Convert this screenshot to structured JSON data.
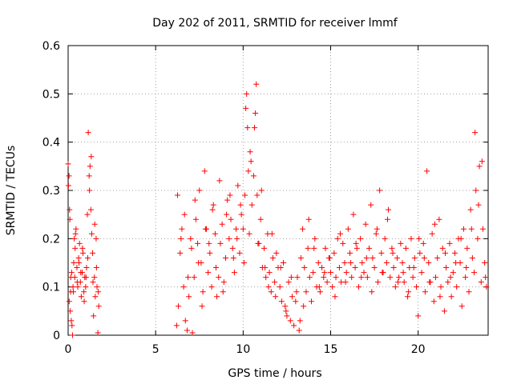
{
  "chart_data": {
    "type": "scatter",
    "title": "Day 202 of 2011, SRMTID for receiver lmmf",
    "xlabel": "GPS time / hours",
    "ylabel": "SRMTID / TECUs",
    "xlim": [
      0,
      24
    ],
    "ylim": [
      0,
      0.6
    ],
    "xticks": [
      0,
      5,
      10,
      15,
      20
    ],
    "xtick_labels": [
      "0",
      "5",
      "10",
      "15",
      "20"
    ],
    "yticks": [
      0,
      0.1,
      0.2,
      0.3,
      0.4,
      0.5,
      0.6
    ],
    "ytick_labels": [
      "0",
      "0.1",
      "0.2",
      "0.3",
      "0.4",
      "0.5",
      "0.6"
    ],
    "grid": true,
    "marker": "+",
    "color": "#ff0000",
    "series": [
      {
        "name": "SRMTID",
        "x": [
          0.0,
          0.05,
          0.08,
          0.1,
          0.12,
          0.15,
          0.18,
          0.2,
          0.22,
          0.25,
          0.3,
          0.32,
          0.35,
          0.38,
          0.4,
          0.45,
          0.5,
          0.55,
          0.6,
          0.65,
          0.7,
          0.75,
          0.8,
          0.85,
          0.9,
          0.95,
          1.0,
          1.05,
          1.1,
          1.15,
          1.2,
          1.25,
          1.3,
          1.35,
          1.4,
          1.45,
          1.5,
          1.55,
          1.6,
          1.65,
          1.7,
          1.75,
          0.02,
          0.06,
          0.14,
          0.28,
          0.42,
          0.52,
          0.62,
          0.72,
          0.82,
          0.92,
          1.02,
          1.12,
          1.22,
          1.32,
          1.42,
          1.52,
          1.62,
          1.72,
          6.2,
          6.3,
          6.4,
          6.5,
          6.6,
          6.7,
          6.8,
          6.9,
          7.0,
          7.1,
          7.2,
          7.3,
          7.4,
          7.5,
          7.6,
          7.7,
          7.8,
          7.9,
          8.0,
          8.1,
          8.2,
          8.3,
          8.4,
          8.5,
          8.6,
          8.7,
          8.8,
          8.9,
          9.0,
          9.1,
          9.2,
          9.3,
          9.4,
          9.5,
          9.6,
          9.7,
          9.8,
          9.9,
          10.0,
          10.1,
          10.2,
          10.25,
          10.3,
          10.35,
          10.4,
          10.5,
          10.6,
          10.7,
          10.75,
          10.8,
          10.9,
          11.0,
          11.1,
          11.2,
          11.3,
          11.4,
          11.5,
          11.6,
          11.7,
          11.8,
          11.9,
          12.0,
          6.25,
          6.45,
          6.65,
          6.85,
          7.05,
          7.25,
          7.45,
          7.65,
          7.85,
          8.05,
          8.25,
          8.45,
          8.65,
          8.85,
          9.05,
          9.25,
          9.45,
          9.65,
          9.85,
          10.05,
          10.15,
          10.45,
          10.65,
          10.85,
          11.05,
          11.25,
          11.45,
          11.65,
          11.85,
          12.1,
          12.2,
          12.3,
          12.4,
          12.5,
          12.6,
          12.7,
          12.8,
          12.9,
          13.0,
          13.1,
          13.2,
          13.3,
          13.4,
          13.5,
          13.6,
          13.7,
          13.8,
          13.9,
          14.0,
          14.1,
          14.2,
          14.3,
          14.4,
          14.5,
          14.6,
          14.7,
          14.8,
          14.9,
          15.0,
          15.1,
          15.2,
          15.3,
          15.4,
          15.5,
          15.6,
          15.7,
          15.8,
          15.9,
          16.0,
          16.1,
          16.2,
          16.3,
          16.4,
          16.5,
          16.6,
          16.7,
          16.8,
          16.9,
          17.0,
          17.1,
          17.2,
          17.3,
          17.4,
          17.5,
          17.6,
          17.7,
          17.8,
          17.9,
          18.0,
          18.1,
          18.2,
          18.3,
          18.4,
          18.5,
          18.6,
          18.7,
          18.8,
          18.9,
          19.0,
          12.15,
          12.45,
          12.75,
          13.05,
          13.25,
          13.45,
          13.75,
          14.05,
          14.35,
          14.65,
          14.95,
          15.25,
          15.55,
          15.85,
          16.15,
          16.45,
          16.75,
          17.05,
          17.35,
          17.65,
          17.95,
          18.25,
          18.55,
          18.85,
          19.1,
          19.2,
          19.3,
          19.4,
          19.5,
          19.6,
          19.7,
          19.8,
          19.9,
          20.0,
          20.1,
          20.2,
          20.3,
          20.4,
          20.5,
          20.6,
          20.7,
          20.8,
          20.9,
          21.0,
          21.1,
          21.2,
          21.3,
          21.4,
          21.5,
          21.6,
          21.7,
          21.8,
          21.9,
          22.0,
          22.1,
          22.2,
          22.3,
          22.4,
          22.5,
          22.6,
          22.7,
          22.8,
          22.9,
          23.0,
          23.1,
          23.2,
          23.3,
          23.4,
          23.5,
          23.6,
          23.7,
          23.8,
          23.9,
          19.15,
          19.45,
          19.75,
          20.05,
          20.35,
          20.65,
          20.95,
          21.25,
          21.55,
          21.85,
          22.15,
          22.45,
          22.75,
          23.05,
          23.25,
          23.45,
          23.65,
          23.85
        ],
        "y": [
          0.355,
          0.33,
          0.26,
          0.24,
          0.05,
          0.12,
          0.03,
          0.13,
          0.02,
          0.0,
          0.09,
          0.15,
          0.2,
          0.12,
          0.18,
          0.22,
          0.14,
          0.1,
          0.16,
          0.19,
          0.11,
          0.08,
          0.13,
          0.17,
          0.09,
          0.12,
          0.1,
          0.14,
          0.25,
          0.42,
          0.33,
          0.35,
          0.26,
          0.21,
          0.17,
          0.04,
          0.12,
          0.08,
          0.2,
          0.1,
          0.005,
          0.06,
          0.31,
          0.07,
          0.09,
          0.1,
          0.21,
          0.11,
          0.15,
          0.13,
          0.18,
          0.07,
          0.12,
          0.16,
          0.3,
          0.37,
          0.11,
          0.23,
          0.14,
          0.09,
          0.02,
          0.06,
          0.17,
          0.22,
          0.1,
          0.03,
          0.01,
          0.08,
          0.2,
          0.005,
          0.12,
          0.24,
          0.19,
          0.3,
          0.15,
          0.09,
          0.34,
          0.22,
          0.13,
          0.17,
          0.1,
          0.27,
          0.21,
          0.08,
          0.12,
          0.19,
          0.23,
          0.11,
          0.16,
          0.28,
          0.2,
          0.24,
          0.18,
          0.13,
          0.22,
          0.31,
          0.17,
          0.25,
          0.22,
          0.29,
          0.5,
          0.43,
          0.34,
          0.21,
          0.38,
          0.27,
          0.33,
          0.46,
          0.52,
          0.29,
          0.19,
          0.24,
          0.14,
          0.18,
          0.12,
          0.21,
          0.13,
          0.09,
          0.16,
          0.11,
          0.17,
          0.14,
          0.29,
          0.2,
          0.25,
          0.12,
          0.18,
          0.28,
          0.15,
          0.06,
          0.22,
          0.19,
          0.26,
          0.14,
          0.32,
          0.09,
          0.25,
          0.29,
          0.16,
          0.2,
          0.27,
          0.15,
          0.47,
          0.36,
          0.43,
          0.19,
          0.3,
          0.14,
          0.1,
          0.21,
          0.08,
          0.1,
          0.07,
          0.15,
          0.06,
          0.04,
          0.11,
          0.03,
          0.08,
          0.02,
          0.07,
          0.12,
          0.01,
          0.16,
          0.22,
          0.14,
          0.09,
          0.18,
          0.12,
          0.07,
          0.13,
          0.2,
          0.1,
          0.15,
          0.09,
          0.14,
          0.12,
          0.18,
          0.11,
          0.16,
          0.13,
          0.1,
          0.17,
          0.12,
          0.2,
          0.14,
          0.11,
          0.19,
          0.15,
          0.13,
          0.22,
          0.17,
          0.12,
          0.25,
          0.14,
          0.18,
          0.1,
          0.2,
          0.15,
          0.13,
          0.23,
          0.12,
          0.18,
          0.27,
          0.16,
          0.14,
          0.21,
          0.11,
          0.3,
          0.17,
          0.13,
          0.2,
          0.15,
          0.26,
          0.12,
          0.18,
          0.14,
          0.1,
          0.16,
          0.12,
          0.19,
          0.14,
          0.05,
          0.12,
          0.09,
          0.03,
          0.06,
          0.24,
          0.18,
          0.1,
          0.13,
          0.16,
          0.08,
          0.21,
          0.11,
          0.15,
          0.19,
          0.12,
          0.16,
          0.09,
          0.22,
          0.13,
          0.24,
          0.17,
          0.11,
          0.15,
          0.11,
          0.18,
          0.08,
          0.14,
          0.2,
          0.12,
          0.16,
          0.1,
          0.04,
          0.17,
          0.13,
          0.19,
          0.09,
          0.34,
          0.15,
          0.11,
          0.21,
          0.07,
          0.12,
          0.16,
          0.24,
          0.1,
          0.18,
          0.05,
          0.14,
          0.11,
          0.19,
          0.08,
          0.13,
          0.17,
          0.1,
          0.2,
          0.15,
          0.06,
          0.22,
          0.12,
          0.18,
          0.09,
          0.26,
          0.16,
          0.13,
          0.3,
          0.2,
          0.35,
          0.11,
          0.22,
          0.15,
          0.1,
          0.13,
          0.09,
          0.14,
          0.2,
          0.16,
          0.11,
          0.23,
          0.08,
          0.17,
          0.12,
          0.15,
          0.2,
          0.14,
          0.22,
          0.42,
          0.27,
          0.36,
          0.12
        ]
      }
    ]
  }
}
